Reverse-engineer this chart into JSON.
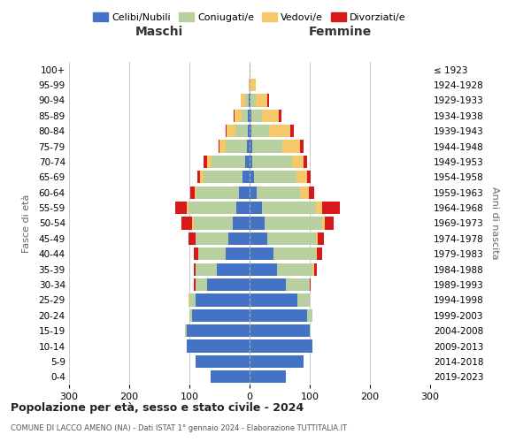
{
  "age_groups": [
    "0-4",
    "5-9",
    "10-14",
    "15-19",
    "20-24",
    "25-29",
    "30-34",
    "35-39",
    "40-44",
    "45-49",
    "50-54",
    "55-59",
    "60-64",
    "65-69",
    "70-74",
    "75-79",
    "80-84",
    "85-89",
    "90-94",
    "95-99",
    "100+"
  ],
  "birth_years": [
    "2019-2023",
    "2014-2018",
    "2009-2013",
    "2004-2008",
    "1999-2003",
    "1994-1998",
    "1989-1993",
    "1984-1988",
    "1979-1983",
    "1974-1978",
    "1969-1973",
    "1964-1968",
    "1959-1963",
    "1954-1958",
    "1949-1953",
    "1944-1948",
    "1939-1943",
    "1934-1938",
    "1929-1933",
    "1924-1928",
    "≤ 1923"
  ],
  "colors": {
    "celibi": "#4472c4",
    "coniugati": "#b8cfa0",
    "vedovi": "#f5c96a",
    "divorziati": "#d7191c"
  },
  "maschi": {
    "celibi": [
      65,
      90,
      105,
      105,
      95,
      90,
      70,
      55,
      40,
      35,
      28,
      22,
      18,
      12,
      8,
      5,
      3,
      3,
      2,
      0,
      0
    ],
    "coniugati": [
      0,
      0,
      0,
      2,
      5,
      10,
      20,
      35,
      45,
      55,
      65,
      80,
      70,
      65,
      55,
      35,
      20,
      10,
      5,
      0,
      0
    ],
    "vedovi": [
      0,
      0,
      0,
      0,
      0,
      2,
      0,
      0,
      0,
      0,
      2,
      2,
      3,
      5,
      8,
      10,
      15,
      12,
      8,
      2,
      0
    ],
    "divorziati": [
      0,
      0,
      0,
      0,
      0,
      0,
      2,
      2,
      8,
      12,
      18,
      20,
      8,
      5,
      5,
      2,
      2,
      2,
      0,
      0,
      0
    ]
  },
  "femmine": {
    "celibi": [
      60,
      90,
      105,
      100,
      95,
      80,
      60,
      45,
      40,
      30,
      25,
      20,
      12,
      8,
      5,
      4,
      3,
      3,
      2,
      0,
      0
    ],
    "coniugati": [
      0,
      0,
      0,
      2,
      10,
      20,
      40,
      60,
      70,
      80,
      95,
      90,
      72,
      70,
      65,
      50,
      30,
      18,
      8,
      2,
      0
    ],
    "vedovi": [
      0,
      0,
      0,
      0,
      0,
      0,
      0,
      2,
      2,
      3,
      5,
      10,
      15,
      18,
      20,
      30,
      35,
      28,
      20,
      8,
      2
    ],
    "divorziati": [
      0,
      0,
      0,
      0,
      0,
      0,
      2,
      5,
      8,
      10,
      15,
      30,
      8,
      5,
      5,
      5,
      5,
      4,
      2,
      0,
      0
    ]
  },
  "title": "Popolazione per età, sesso e stato civile - 2024",
  "subtitle": "COMUNE DI LACCO AMENO (NA) - Dati ISTAT 1° gennaio 2024 - Elaborazione TUTTITALIA.IT",
  "ylabel_left": "Fasce di età",
  "ylabel_right": "Anni di nascita",
  "xlabel_left": "Maschi",
  "xlabel_right": "Femmine",
  "xlim": 300,
  "legend_labels": [
    "Celibi/Nubili",
    "Coniugati/e",
    "Vedovi/e",
    "Divorziati/e"
  ],
  "background_color": "#ffffff",
  "grid_color": "#cccccc"
}
